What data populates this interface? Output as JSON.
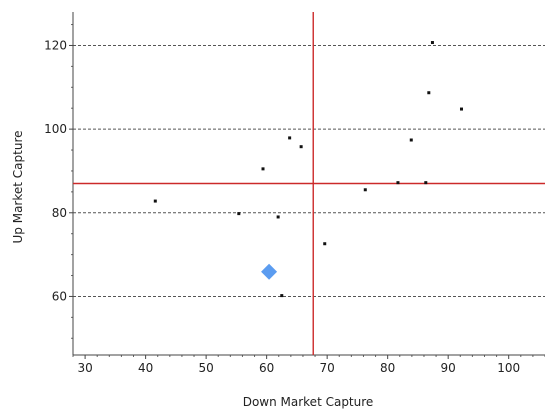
{
  "chart_data": {
    "type": "scatter",
    "xlabel": "Down Market Capture",
    "ylabel": "Up Market Capture",
    "xlim": [
      28,
      106
    ],
    "ylim": [
      46,
      128
    ],
    "xticks": [
      30,
      40,
      50,
      60,
      70,
      80,
      90,
      100
    ],
    "yticks": [
      60,
      80,
      100,
      120
    ],
    "grid": "horizontal dashed",
    "reference_lines": {
      "x": 67.7,
      "y": 87.0,
      "color": "#cc2a2a"
    },
    "series": [
      {
        "marker": "small-square",
        "color": "#111111",
        "points": [
          {
            "x": 41.6,
            "y": 82.8
          },
          {
            "x": 55.4,
            "y": 79.8
          },
          {
            "x": 59.4,
            "y": 90.5
          },
          {
            "x": 61.9,
            "y": 79.0
          },
          {
            "x": 62.5,
            "y": 60.2
          },
          {
            "x": 63.8,
            "y": 97.9
          },
          {
            "x": 65.7,
            "y": 95.8
          },
          {
            "x": 69.6,
            "y": 72.6
          },
          {
            "x": 76.3,
            "y": 85.5
          },
          {
            "x": 81.7,
            "y": 87.2
          },
          {
            "x": 83.9,
            "y": 97.4
          },
          {
            "x": 86.3,
            "y": 87.2
          },
          {
            "x": 86.8,
            "y": 108.7
          },
          {
            "x": 87.4,
            "y": 120.7
          },
          {
            "x": 92.2,
            "y": 104.8
          }
        ]
      },
      {
        "marker": "diamond",
        "color": "#5b9cf0",
        "points": [
          {
            "x": 60.4,
            "y": 65.9
          }
        ]
      }
    ]
  }
}
